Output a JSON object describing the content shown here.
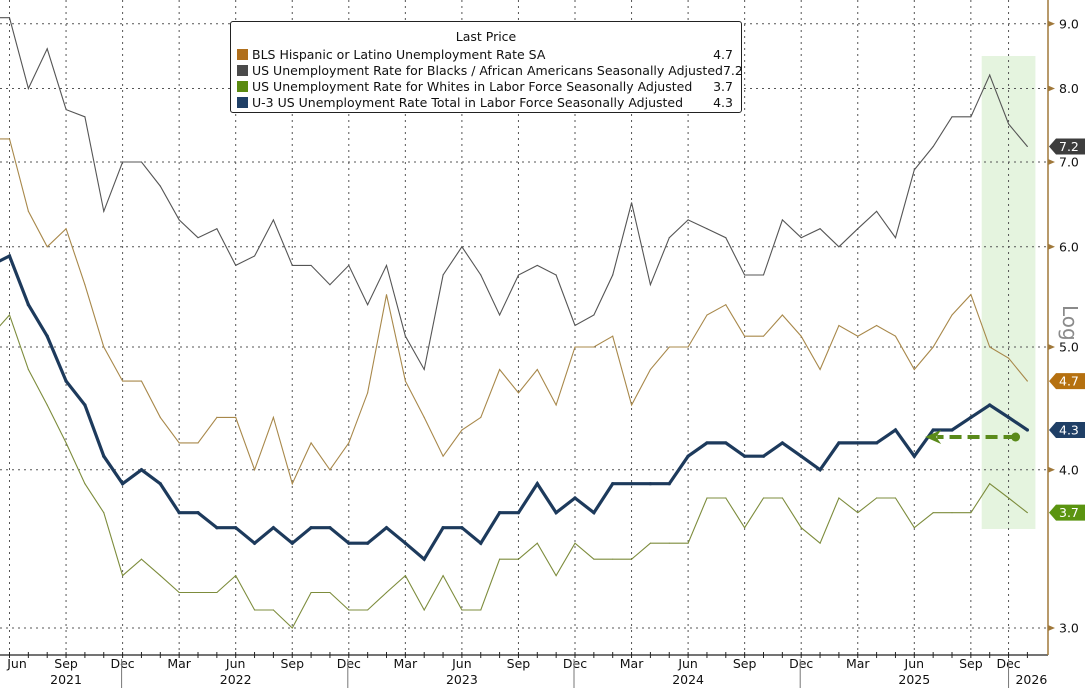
{
  "legend": {
    "title": "Last Price",
    "items": [
      {
        "label": "BLS Hispanic or Latino Unemployment Rate SA",
        "value": "4.7",
        "color": "#b06f1c"
      },
      {
        "label": "US Unemployment Rate for Blacks / African Americans Seasonally Adjusted",
        "value": "7.2",
        "color": "#4a4a4a"
      },
      {
        "label": "US Unemployment Rate for Whites in Labor Force Seasonally Adjusted",
        "value": "3.7",
        "color": "#5a8a10"
      },
      {
        "label": "U-3 US Unemployment Rate Total in Labor Force Seasonally Adjusted",
        "value": "4.3",
        "color": "#1f3f66"
      }
    ]
  },
  "chart_data": {
    "type": "line",
    "y_scale": "log",
    "y_scale_label": "Log",
    "y_axis_side": "right",
    "ylim": [
      2.9,
      9.3
    ],
    "y_ticks": [
      "3.0",
      "4.0",
      "5.0",
      "6.0",
      "7.0",
      "8.0",
      "9.0"
    ],
    "grid": true,
    "legend_placement": "top-center",
    "x": [
      "2021-05",
      "2021-06",
      "2021-07",
      "2021-08",
      "2021-09",
      "2021-10",
      "2021-11",
      "2021-12",
      "2022-01",
      "2022-02",
      "2022-03",
      "2022-04",
      "2022-05",
      "2022-06",
      "2022-07",
      "2022-08",
      "2022-09",
      "2022-10",
      "2022-11",
      "2022-12",
      "2023-01",
      "2023-02",
      "2023-03",
      "2023-04",
      "2023-05",
      "2023-06",
      "2023-07",
      "2023-08",
      "2023-09",
      "2023-10",
      "2023-11",
      "2023-12",
      "2024-01",
      "2024-02",
      "2024-03",
      "2024-04",
      "2024-05",
      "2024-06",
      "2024-07",
      "2024-08",
      "2024-09",
      "2024-10",
      "2024-11",
      "2024-12",
      "2025-01",
      "2025-02",
      "2025-03",
      "2025-04",
      "2025-05",
      "2025-06",
      "2025-07",
      "2025-08",
      "2025-09",
      "2025-11",
      "2025-12",
      "2026-01"
    ],
    "x_tick_labels": [
      {
        "label": "Jun",
        "x": "2021-06"
      },
      {
        "label": "Sep",
        "x": "2021-09"
      },
      {
        "label": "Dec",
        "x": "2021-12"
      },
      {
        "label": "Mar",
        "x": "2022-03"
      },
      {
        "label": "Jun",
        "x": "2022-06"
      },
      {
        "label": "Sep",
        "x": "2022-09"
      },
      {
        "label": "Dec",
        "x": "2022-12"
      },
      {
        "label": "Mar",
        "x": "2023-03"
      },
      {
        "label": "Jun",
        "x": "2023-06"
      },
      {
        "label": "Sep",
        "x": "2023-09"
      },
      {
        "label": "Dec",
        "x": "2023-12"
      },
      {
        "label": "Mar",
        "x": "2024-03"
      },
      {
        "label": "Jun",
        "x": "2024-06"
      },
      {
        "label": "Sep",
        "x": "2024-09"
      },
      {
        "label": "Dec",
        "x": "2024-12"
      },
      {
        "label": "Mar",
        "x": "2025-03"
      },
      {
        "label": "Jun",
        "x": "2025-06"
      },
      {
        "label": "Sep",
        "x": "2025-09"
      },
      {
        "label": "Dec",
        "x": "2025-12"
      }
    ],
    "year_labels": [
      {
        "label": "2021",
        "x": "2021-09"
      },
      {
        "label": "2022",
        "x": "2022-06"
      },
      {
        "label": "2023",
        "x": "2023-06"
      },
      {
        "label": "2024",
        "x": "2024-06"
      },
      {
        "label": "2025",
        "x": "2025-06"
      },
      {
        "label": "2026",
        "x": "2026-01"
      }
    ],
    "series": [
      {
        "name": "BLS Hispanic or Latino Unemployment Rate SA",
        "color": "#a8884a",
        "last": "4.7",
        "tag_color": "#b5700f",
        "values": [
          7.3,
          7.3,
          6.4,
          6.0,
          6.2,
          5.6,
          5.0,
          4.7,
          4.7,
          4.4,
          4.2,
          4.2,
          4.4,
          4.4,
          4.0,
          4.4,
          3.9,
          4.2,
          4.0,
          4.2,
          4.6,
          5.5,
          4.7,
          4.4,
          4.1,
          4.3,
          4.4,
          4.8,
          4.6,
          4.8,
          4.5,
          5.0,
          5.0,
          5.1,
          4.5,
          4.8,
          5.0,
          5.0,
          5.3,
          5.4,
          5.1,
          5.1,
          5.3,
          5.1,
          4.8,
          5.2,
          5.1,
          5.2,
          5.1,
          4.8,
          5.0,
          5.3,
          5.5,
          5.0,
          4.9,
          4.7
        ]
      },
      {
        "name": "US Unemployment Rate for Blacks / African Americans Seasonally Adjusted",
        "color": "#555555",
        "last": "7.2",
        "tag_color": "#3d3d3d",
        "values": [
          9.1,
          9.1,
          8.0,
          8.6,
          7.7,
          7.6,
          6.4,
          7.0,
          7.0,
          6.7,
          6.3,
          6.1,
          6.2,
          5.8,
          5.9,
          6.3,
          5.8,
          5.8,
          5.6,
          5.8,
          5.4,
          5.8,
          5.1,
          4.8,
          5.7,
          6.0,
          5.7,
          5.3,
          5.7,
          5.8,
          5.7,
          5.2,
          5.3,
          5.7,
          6.5,
          5.6,
          6.1,
          6.3,
          6.2,
          6.1,
          5.7,
          5.7,
          6.3,
          6.1,
          6.2,
          6.0,
          6.2,
          6.4,
          6.1,
          6.9,
          7.2,
          7.6,
          7.6,
          8.2,
          7.5,
          7.2
        ]
      },
      {
        "name": "US Unemployment Rate for Whites in Labor Force Seasonally Adjusted",
        "color": "#7d8c3c",
        "last": "3.7",
        "tag_color": "#5a9410",
        "values": [
          5.1,
          5.3,
          4.8,
          4.5,
          4.2,
          3.9,
          3.7,
          3.3,
          3.4,
          3.3,
          3.2,
          3.2,
          3.2,
          3.3,
          3.1,
          3.1,
          3.0,
          3.2,
          3.2,
          3.1,
          3.1,
          3.2,
          3.3,
          3.1,
          3.3,
          3.1,
          3.1,
          3.4,
          3.4,
          3.5,
          3.3,
          3.5,
          3.4,
          3.4,
          3.4,
          3.5,
          3.5,
          3.5,
          3.8,
          3.8,
          3.6,
          3.8,
          3.8,
          3.6,
          3.5,
          3.8,
          3.7,
          3.8,
          3.8,
          3.6,
          3.7,
          3.7,
          3.7,
          3.9,
          3.8,
          3.7
        ]
      },
      {
        "name": "U-3 US Unemployment Rate Total in Labor Force Seasonally Adjusted",
        "color": "#1d3a5c",
        "last": "4.3",
        "tag_color": "#1f3f66",
        "values": [
          5.8,
          5.9,
          5.4,
          5.1,
          4.7,
          4.5,
          4.1,
          3.9,
          4.0,
          3.9,
          3.7,
          3.7,
          3.6,
          3.6,
          3.5,
          3.6,
          3.5,
          3.6,
          3.6,
          3.5,
          3.5,
          3.6,
          3.5,
          3.4,
          3.6,
          3.6,
          3.5,
          3.7,
          3.7,
          3.9,
          3.7,
          3.8,
          3.7,
          3.9,
          3.9,
          3.9,
          3.9,
          4.1,
          4.2,
          4.2,
          4.1,
          4.1,
          4.2,
          4.1,
          4.0,
          4.2,
          4.2,
          4.2,
          4.3,
          4.1,
          4.3,
          4.3,
          4.4,
          4.5,
          4.4,
          4.3
        ]
      }
    ],
    "annotations": [
      {
        "type": "shaded-band",
        "from": "2025-11",
        "to": "2026-01",
        "color": "#e2f3dc"
      },
      {
        "type": "dashed-arrow",
        "from": "2025-12",
        "to": "2025-07",
        "y": 4.3,
        "color": "#5a8a1a"
      }
    ]
  }
}
